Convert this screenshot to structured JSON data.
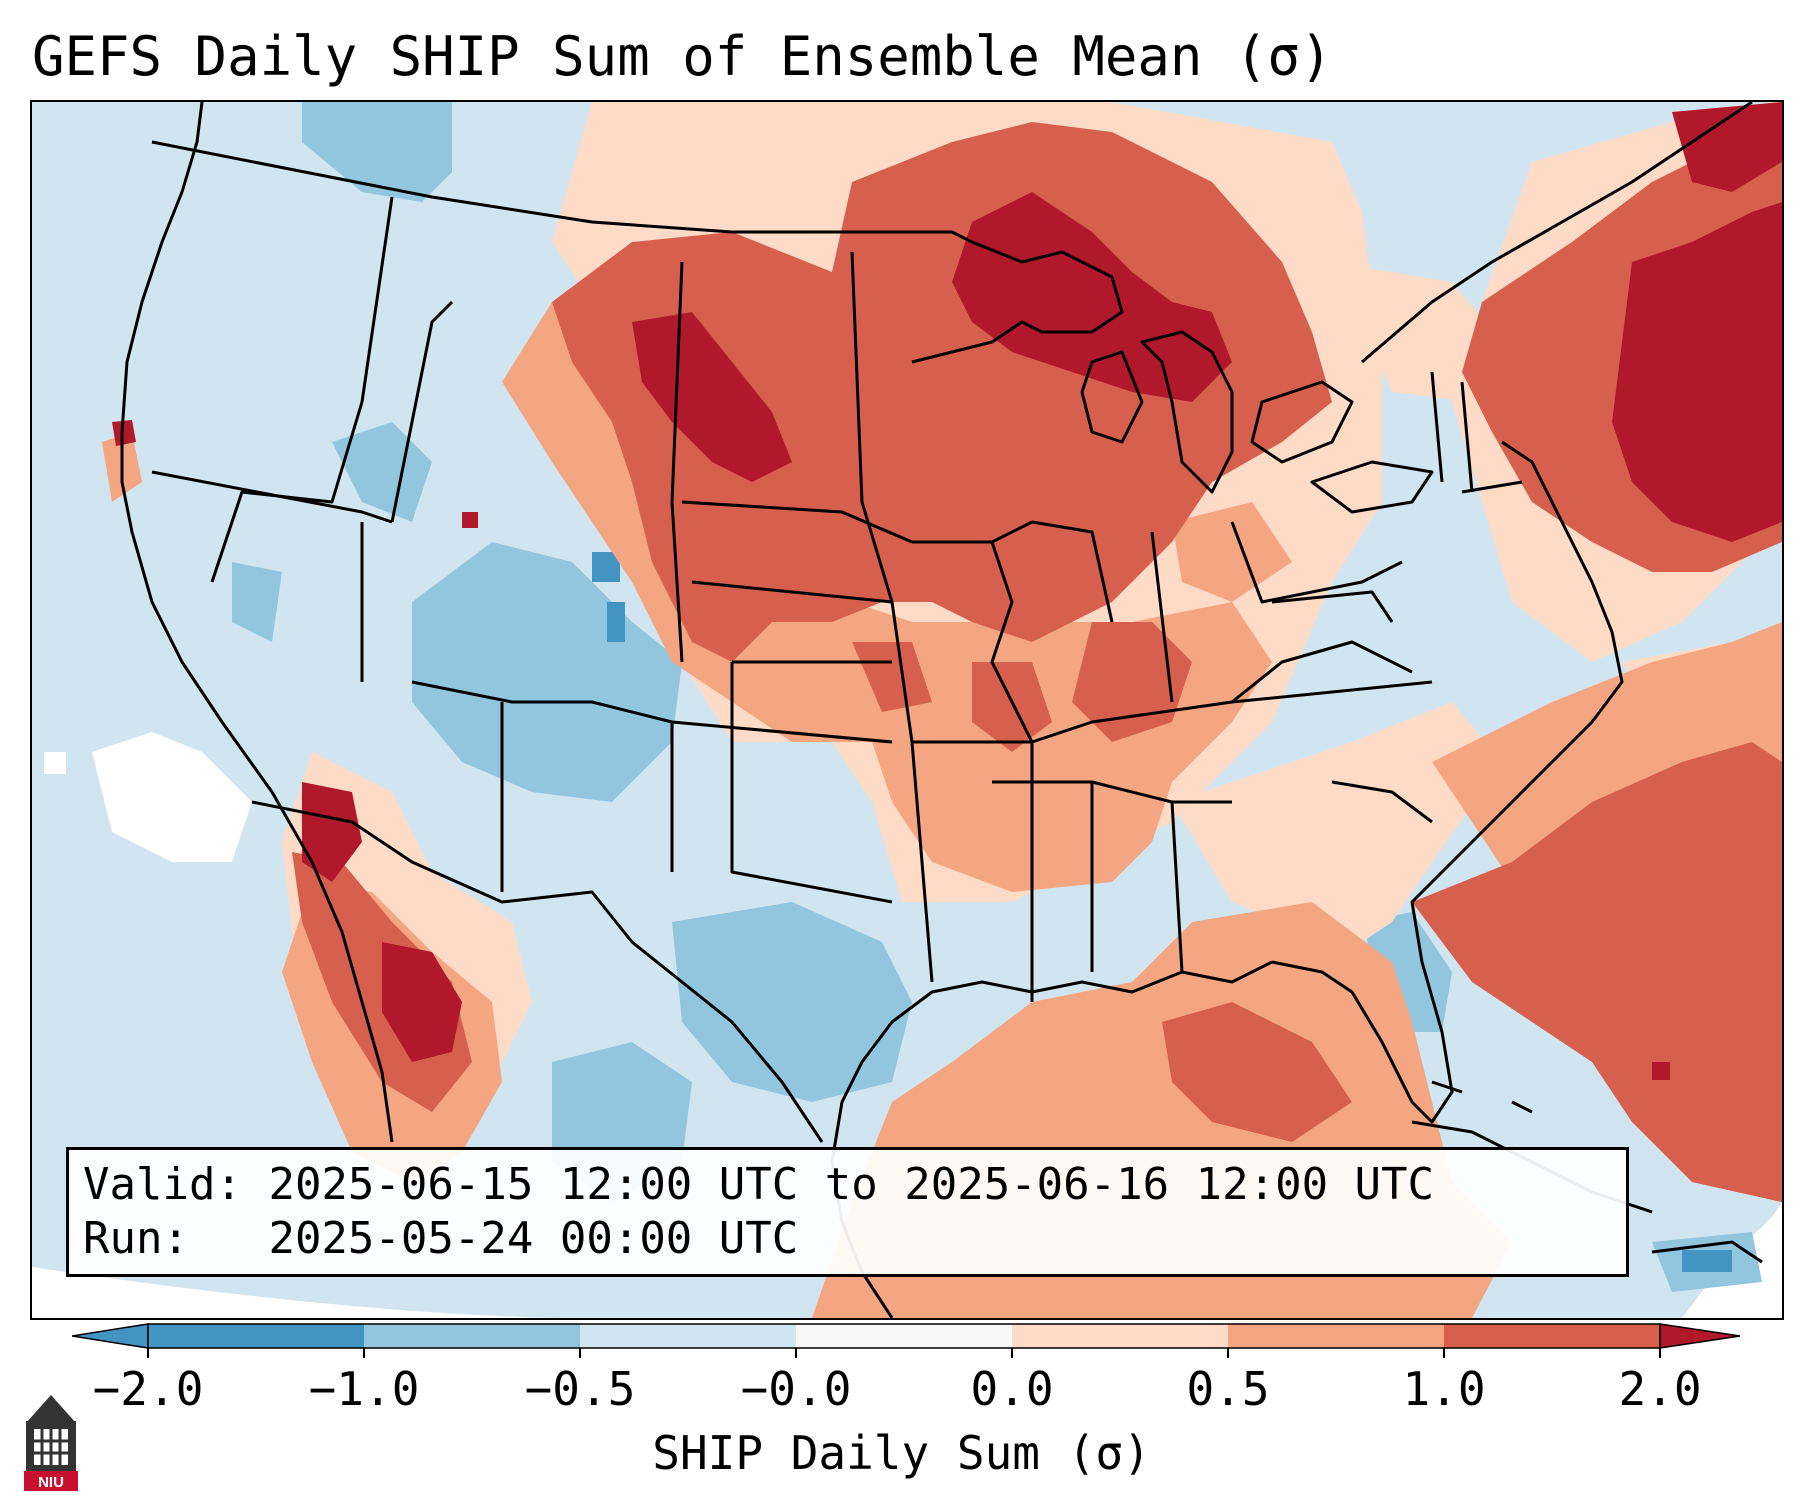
{
  "title": "GEFS Daily SHIP Sum of Ensemble Mean (σ)",
  "info": {
    "valid_label": "Valid:",
    "valid_value": "2025-06-15 12:00 UTC to 2025-06-16 12:00 UTC",
    "run_label": "Run:",
    "run_value": "2025-05-24 00:00 UTC"
  },
  "colorbar": {
    "label": "SHIP Daily Sum (σ)",
    "ticks": [
      "−2.0",
      "−1.0",
      "−0.5",
      "−0.0",
      "0.0",
      "0.5",
      "1.0",
      "2.0"
    ],
    "colors": [
      "#4393c3",
      "#92c5de",
      "#d1e5f0",
      "#f7f7f7",
      "#fddbc7",
      "#f4a582",
      "#d6604d",
      "#b2182b"
    ],
    "extend": "both"
  },
  "logo": {
    "text": "NIU",
    "icon": "niu-logo-icon"
  },
  "map": {
    "region": "CONUS",
    "field": "SHIP daily sum anomaly"
  }
}
